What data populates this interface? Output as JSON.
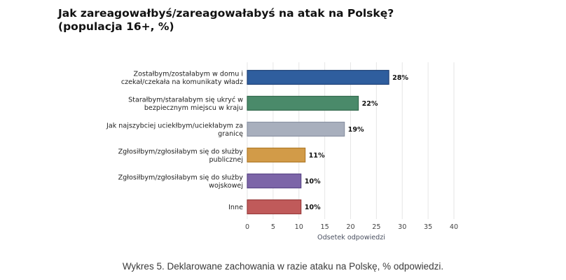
{
  "chart_data": {
    "type": "bar",
    "orientation": "horizontal",
    "title": [
      "Jak zareagowałbyś/zareagowałabyś na atak na Polskę?",
      "(populacja 16+, %)"
    ],
    "xlabel": "Odsetek odpowiedzi",
    "ylabel": "",
    "xlim": [
      0,
      40
    ],
    "xticks": [
      0,
      5,
      10,
      15,
      20,
      25,
      30,
      35,
      40
    ],
    "grid": true,
    "value_suffix": "%",
    "categories": [
      [
        "Zostałbym/zostałabym w domu i",
        "czekał/czekała na komunikaty władz"
      ],
      [
        "Starałbym/starałabym się ukryć w",
        "bezpiecznym miejscu w kraju"
      ],
      [
        "Jak najszybciej uciekłbym/uciekłabym za",
        "granicę"
      ],
      [
        "Zgłosiłbym/zgłosiłabym się do służby",
        "publicznej"
      ],
      [
        "Zgłosiłbym/zgłosiłabym się do służby",
        "wojskowej"
      ],
      [
        "Inne"
      ]
    ],
    "values": [
      28,
      22,
      19,
      11,
      10,
      10
    ],
    "bar_values_plotted": [
      27.4,
      21.5,
      18.8,
      11.2,
      10.4,
      10.4
    ],
    "colors": [
      "#2f5e9e",
      "#4a8a6a",
      "#a8afbd",
      "#d29b48",
      "#7c65a8",
      "#c05a5a"
    ],
    "border_colors": [
      "#1f4176",
      "#346a4e",
      "#8a92a3",
      "#b07a2a",
      "#5c4888",
      "#9a3c3c"
    ]
  },
  "caption": "Wykres 5. Deklarowane zachowania w razie ataku na Polskę, % odpowiedzi."
}
